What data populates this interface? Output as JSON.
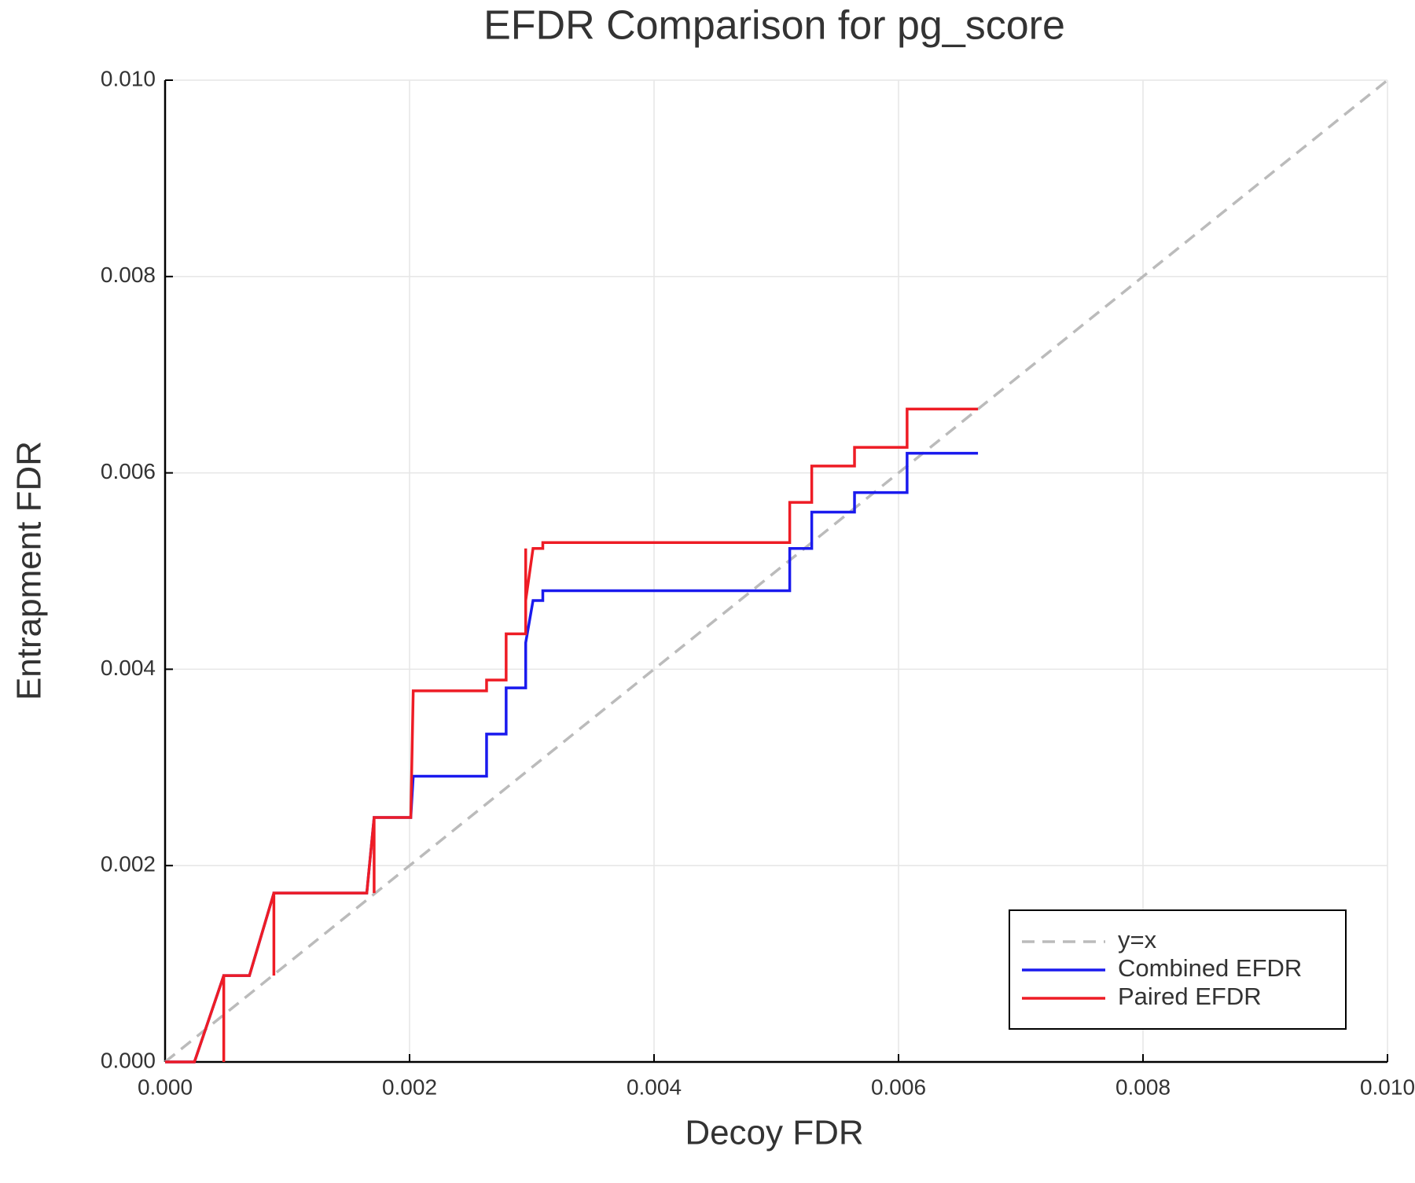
{
  "chart_data": {
    "type": "line",
    "title": "EFDR Comparison for pg_score",
    "x_label": "Decoy FDR",
    "y_label": "Entrapment FDR",
    "xlim": [
      0,
      0.01
    ],
    "ylim": [
      0,
      0.01
    ],
    "xticks": [
      {
        "value": 0,
        "label": "0.000"
      },
      {
        "value": 0.002,
        "label": "0.002"
      },
      {
        "value": 0.004,
        "label": "0.004"
      },
      {
        "value": 0.006,
        "label": "0.006"
      },
      {
        "value": 0.008,
        "label": "0.008"
      },
      {
        "value": 0.01,
        "label": "0.010"
      }
    ],
    "yticks": [
      {
        "value": 0,
        "label": "0.000"
      },
      {
        "value": 0.002,
        "label": "0.002"
      },
      {
        "value": 0.004,
        "label": "0.004"
      },
      {
        "value": 0.006,
        "label": "0.006"
      },
      {
        "value": 0.008,
        "label": "0.008"
      },
      {
        "value": 0.01,
        "label": "0.010"
      }
    ],
    "grid": true,
    "legend": "lower right",
    "series": [
      {
        "name": "y=x",
        "color": "#bbbbbb",
        "linestyle": "dashed",
        "x": [
          0,
          0.01
        ],
        "values": [
          0,
          0.01
        ]
      },
      {
        "name": "Combined EFDR",
        "color": "#1a1aee",
        "linestyle": "solid",
        "x": [
          0,
          0.00024,
          0.00048,
          0.00069,
          0.00089,
          0.00165,
          0.00171,
          0.00201,
          0.00203,
          0.00263,
          0.00263,
          0.00279,
          0.00279,
          0.00295,
          0.00295,
          0.00301,
          0.00309,
          0.00309,
          0.00511,
          0.00511,
          0.00529,
          0.00529,
          0.00564,
          0.00564,
          0.00607,
          0.00607,
          0.00665
        ],
        "values": [
          0,
          0,
          0.00088,
          0.00088,
          0.00172,
          0.00172,
          0.00249,
          0.00249,
          0.00291,
          0.00291,
          0.00334,
          0.00334,
          0.00381,
          0.00381,
          0.00427,
          0.0047,
          0.0047,
          0.0048,
          0.0048,
          0.00523,
          0.00523,
          0.0056,
          0.0056,
          0.0058,
          0.0058,
          0.0062,
          0.0062
        ]
      },
      {
        "name": "Paired EFDR",
        "color": "#ee1c25",
        "linestyle": "solid",
        "x": [
          0,
          0.00024,
          0.00048,
          0.00048,
          0.00048,
          0.00069,
          0.00089,
          0.00089,
          0.00089,
          0.00165,
          0.00171,
          0.00171,
          0.00171,
          0.00201,
          0.00203,
          0.00263,
          0.00263,
          0.00279,
          0.00279,
          0.00295,
          0.00295,
          0.00295,
          0.00301,
          0.00309,
          0.00309,
          0.00511,
          0.00511,
          0.00529,
          0.00529,
          0.00564,
          0.00564,
          0.00607,
          0.00607,
          0.00665
        ],
        "values": [
          0,
          0,
          0.00088,
          0,
          0.00088,
          0.00088,
          0.00172,
          0.00088,
          0.00172,
          0.00172,
          0.00249,
          0.00172,
          0.00249,
          0.00249,
          0.00378,
          0.00378,
          0.00389,
          0.00389,
          0.00436,
          0.00436,
          0.00523,
          0.0047,
          0.00523,
          0.00523,
          0.00529,
          0.00529,
          0.0057,
          0.0057,
          0.00607,
          0.00607,
          0.00626,
          0.00626,
          0.00665,
          0.00665
        ]
      }
    ]
  }
}
